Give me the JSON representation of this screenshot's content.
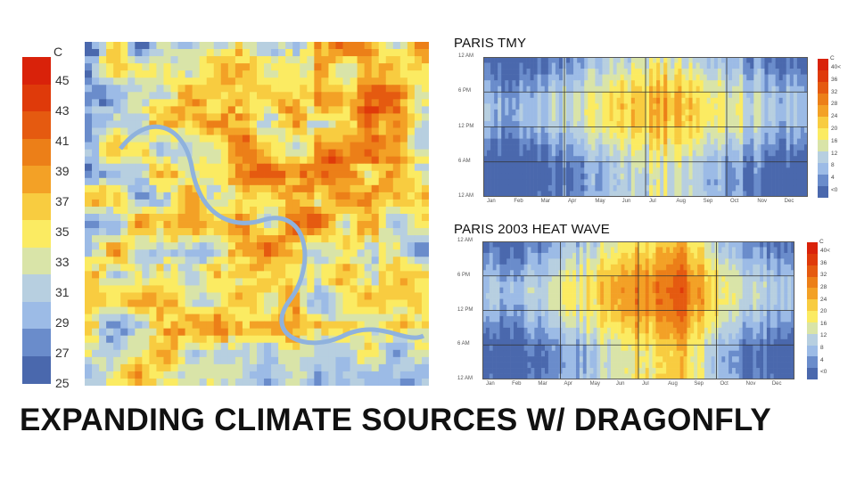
{
  "title": "EXPANDING CLIMATE SOURCES W/ DRAGONFLY",
  "colors": [
    "#4a68ad",
    "#6a8ccb",
    "#9cbbe6",
    "#b7cfe0",
    "#d9e4a8",
    "#fbeb62",
    "#f8cc40",
    "#f3a126",
    "#ec7f18",
    "#e55a10",
    "#df3a0a",
    "#d9220a"
  ],
  "chart_data": [
    {
      "type": "heatmap",
      "name": "surface-temperature-map",
      "legend": {
        "unit": "C",
        "labels": [
          "45",
          "43",
          "41",
          "39",
          "37",
          "35",
          "33",
          "31",
          "29",
          "27",
          "25"
        ],
        "min": 25,
        "max": 45
      }
    },
    {
      "type": "heatmap",
      "title": "PARIS TMY",
      "y_ticks": [
        "12 AM",
        "6 PM",
        "12 PM",
        "6 AM",
        "12 AM"
      ],
      "x_ticks": [
        "Jan",
        "Feb",
        "Mar",
        "Apr",
        "May",
        "Jun",
        "Jul",
        "Aug",
        "Sep",
        "Oct",
        "Nov",
        "Dec"
      ],
      "legend": {
        "unit": "C",
        "labels": [
          "40<",
          "36",
          "32",
          "28",
          "24",
          "20",
          "16",
          "12",
          "8",
          "4",
          "<0"
        ]
      },
      "monthly_peak_c": [
        6,
        7,
        11,
        14,
        18,
        21,
        25,
        24,
        19,
        14,
        9,
        6
      ]
    },
    {
      "type": "heatmap",
      "title": "PARIS 2003 HEAT WAVE",
      "y_ticks": [
        "12 AM",
        "6 PM",
        "12 PM",
        "6 AM",
        "12 AM"
      ],
      "x_ticks": [
        "Jan",
        "Feb",
        "Mar",
        "Apr",
        "May",
        "Jun",
        "Jul",
        "Aug",
        "Sep",
        "Oct",
        "Nov",
        "Dec"
      ],
      "legend": {
        "unit": "C",
        "labels": [
          "40<",
          "36",
          "32",
          "28",
          "24",
          "20",
          "16",
          "12",
          "8",
          "4",
          "<0"
        ]
      },
      "monthly_peak_c": [
        6,
        8,
        13,
        15,
        22,
        29,
        29,
        36,
        24,
        14,
        9,
        7
      ]
    }
  ]
}
